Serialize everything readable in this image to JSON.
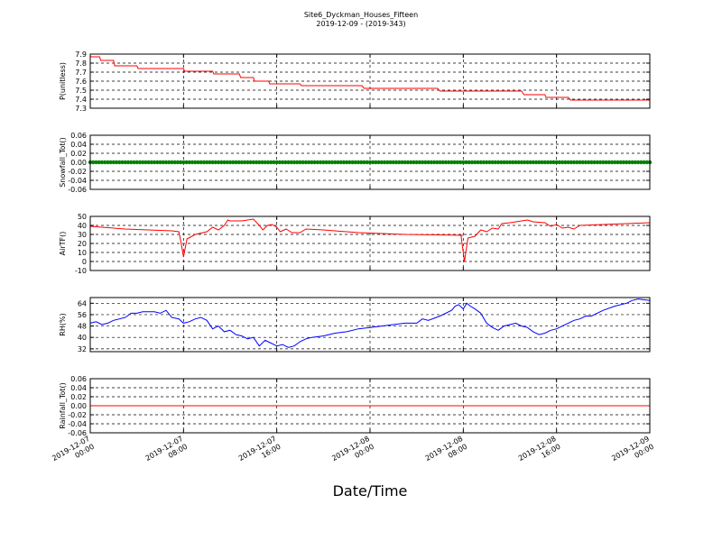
{
  "title": "Site6_Dyckman_Houses_Fifteen",
  "subtitle": "2019-12-09 - (2019-343)",
  "xlabel": "Date/Time",
  "x_ticks": [
    {
      "line1": "2019-12-07",
      "line2": "00:00"
    },
    {
      "line1": "2019-12-07",
      "line2": "08:00"
    },
    {
      "line1": "2019-12-07",
      "line2": "16:00"
    },
    {
      "line1": "2019-12-08",
      "line2": "00:00"
    },
    {
      "line1": "2019-12-08",
      "line2": "08:00"
    },
    {
      "line1": "2019-12-08",
      "line2": "16:00"
    },
    {
      "line1": "2019-12-09",
      "line2": "00:00"
    }
  ],
  "chart_data": [
    {
      "type": "line",
      "ylabel": "P(unitless)",
      "ylim": [
        7.3,
        7.9
      ],
      "yticks": [
        "7.3",
        "7.4",
        "7.5",
        "7.6",
        "7.7",
        "7.8",
        "7.9"
      ],
      "xlim_hours": [
        0,
        48
      ],
      "grid": true,
      "color": "#ff0000",
      "points": [
        [
          0,
          7.87
        ],
        [
          0.8,
          7.87
        ],
        [
          0.9,
          7.83
        ],
        [
          2.0,
          7.83
        ],
        [
          2.1,
          7.77
        ],
        [
          4.0,
          7.77
        ],
        [
          4.1,
          7.74
        ],
        [
          8.0,
          7.74
        ],
        [
          8.1,
          7.71
        ],
        [
          10.5,
          7.71
        ],
        [
          10.6,
          7.68
        ],
        [
          12.8,
          7.68
        ],
        [
          12.9,
          7.64
        ],
        [
          14.0,
          7.64
        ],
        [
          14.1,
          7.6
        ],
        [
          15.3,
          7.6
        ],
        [
          15.4,
          7.57
        ],
        [
          18.0,
          7.57
        ],
        [
          18.1,
          7.55
        ],
        [
          23.3,
          7.55
        ],
        [
          23.5,
          7.52
        ],
        [
          29.8,
          7.52
        ],
        [
          30.0,
          7.49
        ],
        [
          37.0,
          7.49
        ],
        [
          37.2,
          7.45
        ],
        [
          39.0,
          7.45
        ],
        [
          39.1,
          7.42
        ],
        [
          41.0,
          7.42
        ],
        [
          41.2,
          7.39
        ],
        [
          48.0,
          7.39
        ]
      ]
    },
    {
      "type": "scatter",
      "ylabel": "Snowfall_Tot()",
      "ylim": [
        -0.06,
        0.06
      ],
      "yticks": [
        "-0.06",
        "-0.04",
        "-0.02",
        "0.00",
        "0.02",
        "0.04",
        "0.06"
      ],
      "xlim_hours": [
        0,
        48
      ],
      "grid": true,
      "color": "#008000",
      "constant_value": 0.0,
      "interval_hours": 0.25
    },
    {
      "type": "line",
      "ylabel": "AirTF()",
      "ylim": [
        -10,
        50
      ],
      "yticks": [
        "-10",
        "0",
        "10",
        "20",
        "30",
        "40",
        "50"
      ],
      "xlim_hours": [
        0,
        48
      ],
      "grid": true,
      "color": "#ff0000",
      "points": [
        [
          0,
          39
        ],
        [
          1,
          38
        ],
        [
          3,
          36
        ],
        [
          5,
          35
        ],
        [
          7,
          34
        ],
        [
          7.6,
          33
        ],
        [
          7.8,
          20
        ],
        [
          8.0,
          5
        ],
        [
          8.3,
          25
        ],
        [
          9,
          30
        ],
        [
          10,
          33
        ],
        [
          10.5,
          38
        ],
        [
          11,
          35
        ],
        [
          11.5,
          40
        ],
        [
          11.8,
          46
        ],
        [
          12,
          45
        ],
        [
          13,
          45
        ],
        [
          14,
          47
        ],
        [
          14.5,
          40
        ],
        [
          14.8,
          35
        ],
        [
          15.2,
          40
        ],
        [
          15.6,
          41
        ],
        [
          16,
          38
        ],
        [
          16.3,
          33
        ],
        [
          16.8,
          36
        ],
        [
          17.3,
          32
        ],
        [
          18,
          32
        ],
        [
          18.5,
          36
        ],
        [
          20,
          35
        ],
        [
          23,
          32
        ],
        [
          27,
          30
        ],
        [
          32,
          29
        ],
        [
          31.8,
          29
        ],
        [
          32.1,
          0
        ],
        [
          32.4,
          26
        ],
        [
          33,
          28
        ],
        [
          33.5,
          35
        ],
        [
          34,
          33
        ],
        [
          34.5,
          37
        ],
        [
          35,
          36
        ],
        [
          35.3,
          42
        ],
        [
          36,
          43
        ],
        [
          37,
          45
        ],
        [
          37.5,
          46
        ],
        [
          38,
          44
        ],
        [
          39,
          43
        ],
        [
          39.5,
          39
        ],
        [
          40,
          41
        ],
        [
          40.5,
          37
        ],
        [
          41,
          38
        ],
        [
          41.5,
          36
        ],
        [
          42,
          40
        ],
        [
          44,
          41
        ],
        [
          46,
          42
        ],
        [
          48,
          43
        ]
      ]
    },
    {
      "type": "line",
      "ylabel": "RH(%)",
      "ylim": [
        30,
        68
      ],
      "yticks": [
        "32",
        "40",
        "48",
        "56",
        "64"
      ],
      "xlim_hours": [
        0,
        48
      ],
      "grid": true,
      "color": "#0000ff",
      "points": [
        [
          0,
          50
        ],
        [
          0.5,
          51
        ],
        [
          1,
          49
        ],
        [
          1.5,
          50
        ],
        [
          2,
          52
        ],
        [
          3,
          54
        ],
        [
          3.5,
          57
        ],
        [
          4,
          57
        ],
        [
          4.5,
          58
        ],
        [
          5.5,
          58
        ],
        [
          6,
          57
        ],
        [
          6.5,
          59
        ],
        [
          7,
          54
        ],
        [
          7.6,
          53
        ],
        [
          8,
          50
        ],
        [
          8.5,
          51
        ],
        [
          9,
          53
        ],
        [
          9.5,
          54
        ],
        [
          10,
          52
        ],
        [
          10.5,
          46
        ],
        [
          11,
          48
        ],
        [
          11.5,
          44
        ],
        [
          12,
          45
        ],
        [
          12.5,
          42
        ],
        [
          13,
          41
        ],
        [
          13.5,
          39
        ],
        [
          14,
          40
        ],
        [
          14.5,
          34
        ],
        [
          15,
          38
        ],
        [
          15.5,
          36
        ],
        [
          16,
          34
        ],
        [
          16.5,
          35
        ],
        [
          17,
          33
        ],
        [
          17.5,
          34
        ],
        [
          18,
          37
        ],
        [
          18.5,
          39
        ],
        [
          19,
          40
        ],
        [
          20,
          41
        ],
        [
          21,
          43
        ],
        [
          22,
          44
        ],
        [
          23,
          46
        ],
        [
          24,
          47
        ],
        [
          25,
          48
        ],
        [
          26,
          49
        ],
        [
          27,
          50
        ],
        [
          28,
          50
        ],
        [
          28.5,
          53
        ],
        [
          29,
          52
        ],
        [
          30,
          55
        ],
        [
          31,
          59
        ],
        [
          31.3,
          62
        ],
        [
          31.6,
          63
        ],
        [
          32,
          60
        ],
        [
          32.3,
          64
        ],
        [
          32.6,
          62
        ],
        [
          33,
          60
        ],
        [
          33.5,
          57
        ],
        [
          34,
          50
        ],
        [
          34.5,
          47
        ],
        [
          35,
          45
        ],
        [
          35.5,
          48
        ],
        [
          36,
          49
        ],
        [
          36.5,
          50
        ],
        [
          37,
          48
        ],
        [
          37.5,
          47
        ],
        [
          38,
          44
        ],
        [
          38.5,
          42
        ],
        [
          39,
          43
        ],
        [
          39.5,
          45
        ],
        [
          40,
          46
        ],
        [
          40.5,
          48
        ],
        [
          41,
          50
        ],
        [
          41.5,
          52
        ],
        [
          42,
          53
        ],
        [
          42.5,
          55
        ],
        [
          43,
          55
        ],
        [
          44,
          59
        ],
        [
          45,
          62
        ],
        [
          46,
          64
        ],
        [
          46.5,
          66
        ],
        [
          47,
          67
        ],
        [
          48,
          66
        ]
      ]
    },
    {
      "type": "line",
      "ylabel": "Rainfall_Tot()",
      "ylim": [
        -0.06,
        0.06
      ],
      "yticks": [
        "-0.06",
        "-0.04",
        "-0.02",
        "0.00",
        "0.02",
        "0.04",
        "0.06"
      ],
      "xlim_hours": [
        0,
        48
      ],
      "grid": true,
      "color": "#ff0000",
      "points": [
        [
          0,
          0
        ],
        [
          48,
          0
        ]
      ]
    }
  ]
}
